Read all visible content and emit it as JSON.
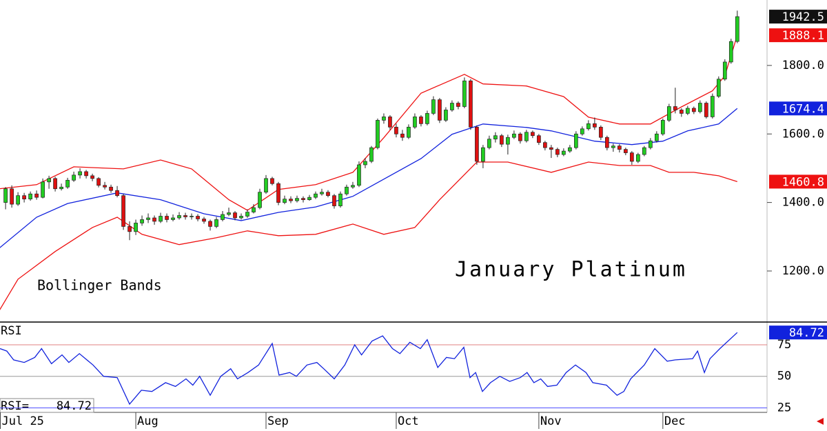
{
  "chart_data": [
    {
      "type": "candlestick",
      "title": "January Platinum",
      "subtitle": "Bollinger Bands",
      "up_color": "#22cc22",
      "down_color": "#dd1111",
      "ohlc": [
        [
          1400,
          1445,
          1380,
          1440
        ],
        [
          1440,
          1450,
          1385,
          1395
        ],
        [
          1395,
          1430,
          1390,
          1420
        ],
        [
          1420,
          1428,
          1400,
          1410
        ],
        [
          1410,
          1432,
          1405,
          1425
        ],
        [
          1425,
          1435,
          1408,
          1415
        ],
        [
          1415,
          1470,
          1412,
          1460
        ],
        [
          1460,
          1478,
          1440,
          1470
        ],
        [
          1470,
          1475,
          1432,
          1440
        ],
        [
          1440,
          1455,
          1435,
          1445
        ],
        [
          1445,
          1472,
          1440,
          1465
        ],
        [
          1465,
          1490,
          1460,
          1480
        ],
        [
          1480,
          1500,
          1470,
          1490
        ],
        [
          1490,
          1495,
          1470,
          1478
        ],
        [
          1478,
          1484,
          1462,
          1470
        ],
        [
          1470,
          1474,
          1444,
          1450
        ],
        [
          1450,
          1460,
          1438,
          1445
        ],
        [
          1445,
          1452,
          1428,
          1435
        ],
        [
          1435,
          1448,
          1415,
          1420
        ],
        [
          1420,
          1425,
          1320,
          1330
        ],
        [
          1330,
          1345,
          1290,
          1315
        ],
        [
          1315,
          1350,
          1305,
          1340
        ],
        [
          1340,
          1362,
          1332,
          1350
        ],
        [
          1350,
          1368,
          1340,
          1355
        ],
        [
          1355,
          1362,
          1335,
          1345
        ],
        [
          1345,
          1370,
          1340,
          1360
        ],
        [
          1360,
          1368,
          1342,
          1350
        ],
        [
          1350,
          1365,
          1345,
          1355
        ],
        [
          1355,
          1372,
          1350,
          1362
        ],
        [
          1362,
          1370,
          1350,
          1358
        ],
        [
          1358,
          1368,
          1350,
          1360
        ],
        [
          1360,
          1366,
          1345,
          1352
        ],
        [
          1352,
          1358,
          1338,
          1345
        ],
        [
          1345,
          1350,
          1318,
          1330
        ],
        [
          1330,
          1358,
          1325,
          1350
        ],
        [
          1350,
          1375,
          1345,
          1365
        ],
        [
          1365,
          1385,
          1360,
          1370
        ],
        [
          1370,
          1375,
          1348,
          1355
        ],
        [
          1355,
          1368,
          1350,
          1360
        ],
        [
          1360,
          1380,
          1355,
          1372
        ],
        [
          1372,
          1395,
          1368,
          1385
        ],
        [
          1385,
          1440,
          1380,
          1430
        ],
        [
          1430,
          1480,
          1425,
          1470
        ],
        [
          1470,
          1475,
          1450,
          1455
        ],
        [
          1455,
          1460,
          1392,
          1400
        ],
        [
          1400,
          1420,
          1395,
          1410
        ],
        [
          1410,
          1418,
          1398,
          1405
        ],
        [
          1405,
          1420,
          1400,
          1412
        ],
        [
          1412,
          1418,
          1400,
          1408
        ],
        [
          1408,
          1422,
          1405,
          1415
        ],
        [
          1415,
          1432,
          1410,
          1425
        ],
        [
          1425,
          1440,
          1420,
          1430
        ],
        [
          1430,
          1436,
          1415,
          1420
        ],
        [
          1420,
          1425,
          1382,
          1390
        ],
        [
          1390,
          1432,
          1385,
          1425
        ],
        [
          1425,
          1452,
          1420,
          1445
        ],
        [
          1445,
          1460,
          1440,
          1450
        ],
        [
          1450,
          1520,
          1445,
          1510
        ],
        [
          1510,
          1530,
          1500,
          1520
        ],
        [
          1520,
          1565,
          1515,
          1560
        ],
        [
          1560,
          1645,
          1555,
          1640
        ],
        [
          1640,
          1660,
          1630,
          1650
        ],
        [
          1650,
          1655,
          1612,
          1620
        ],
        [
          1620,
          1630,
          1590,
          1600
        ],
        [
          1600,
          1612,
          1580,
          1590
        ],
        [
          1590,
          1628,
          1585,
          1620
        ],
        [
          1620,
          1660,
          1615,
          1650
        ],
        [
          1650,
          1655,
          1622,
          1630
        ],
        [
          1630,
          1668,
          1625,
          1660
        ],
        [
          1660,
          1710,
          1655,
          1700
        ],
        [
          1700,
          1705,
          1632,
          1640
        ],
        [
          1640,
          1678,
          1635,
          1670
        ],
        [
          1670,
          1698,
          1665,
          1690
        ],
        [
          1690,
          1695,
          1672,
          1680
        ],
        [
          1680,
          1765,
          1675,
          1755
        ],
        [
          1755,
          1760,
          1612,
          1620
        ],
        [
          1620,
          1625,
          1510,
          1520
        ],
        [
          1520,
          1568,
          1500,
          1560
        ],
        [
          1560,
          1595,
          1555,
          1585
        ],
        [
          1585,
          1605,
          1575,
          1595
        ],
        [
          1595,
          1600,
          1562,
          1570
        ],
        [
          1570,
          1598,
          1540,
          1590
        ],
        [
          1590,
          1610,
          1585,
          1600
        ],
        [
          1600,
          1605,
          1572,
          1580
        ],
        [
          1580,
          1612,
          1575,
          1605
        ],
        [
          1605,
          1610,
          1588,
          1595
        ],
        [
          1595,
          1600,
          1568,
          1575
        ],
        [
          1575,
          1580,
          1552,
          1560
        ],
        [
          1560,
          1568,
          1530,
          1555
        ],
        [
          1555,
          1560,
          1532,
          1540
        ],
        [
          1540,
          1558,
          1535,
          1550
        ],
        [
          1550,
          1568,
          1545,
          1560
        ],
        [
          1560,
          1608,
          1555,
          1600
        ],
        [
          1600,
          1622,
          1595,
          1615
        ],
        [
          1615,
          1640,
          1610,
          1630
        ],
        [
          1630,
          1648,
          1612,
          1620
        ],
        [
          1620,
          1625,
          1582,
          1590
        ],
        [
          1590,
          1595,
          1552,
          1560
        ],
        [
          1560,
          1572,
          1548,
          1565
        ],
        [
          1565,
          1570,
          1546,
          1555
        ],
        [
          1555,
          1560,
          1538,
          1545
        ],
        [
          1545,
          1550,
          1510,
          1520
        ],
        [
          1520,
          1545,
          1515,
          1540
        ],
        [
          1540,
          1565,
          1535,
          1560
        ],
        [
          1560,
          1588,
          1555,
          1580
        ],
        [
          1580,
          1608,
          1575,
          1600
        ],
        [
          1600,
          1645,
          1595,
          1640
        ],
        [
          1640,
          1688,
          1635,
          1680
        ],
        [
          1680,
          1735,
          1660,
          1670
        ],
        [
          1670,
          1675,
          1650,
          1660
        ],
        [
          1660,
          1682,
          1655,
          1675
        ],
        [
          1675,
          1680,
          1658,
          1665
        ],
        [
          1665,
          1698,
          1660,
          1690
        ],
        [
          1690,
          1695,
          1645,
          1650
        ],
        [
          1650,
          1718,
          1645,
          1710
        ],
        [
          1710,
          1768,
          1705,
          1760
        ],
        [
          1760,
          1818,
          1755,
          1810
        ],
        [
          1810,
          1878,
          1805,
          1870
        ],
        [
          1870,
          1960,
          1865,
          1942.5
        ]
      ],
      "bands": {
        "upper": {
          "color": "#ee1111",
          "x": [
            -1,
            5,
            11,
            19,
            25,
            30,
            36,
            39,
            44,
            50,
            56,
            61,
            67,
            74,
            77,
            84,
            90,
            94,
            99,
            104,
            109,
            114,
            116,
            118
          ],
          "values": [
            1440,
            1452,
            1504,
            1498,
            1524,
            1498,
            1408,
            1377,
            1438,
            1452,
            1488,
            1589,
            1719,
            1774,
            1746,
            1740,
            1709,
            1649,
            1629,
            1629,
            1679,
            1726,
            1770,
            1888.1
          ]
        },
        "middle": {
          "color": "#1122dd",
          "x": [
            -1,
            5,
            10,
            18,
            25,
            32,
            38,
            44,
            50,
            56,
            61,
            67,
            72,
            77,
            84,
            88,
            95,
            101,
            106,
            110,
            115,
            118
          ],
          "values": [
            1267,
            1357,
            1397,
            1428,
            1408,
            1367,
            1347,
            1371,
            1387,
            1418,
            1468,
            1528,
            1599,
            1629,
            1619,
            1609,
            1579,
            1569,
            1579,
            1609,
            1629,
            1674.4
          ]
        },
        "lower": {
          "color": "#ee1111",
          "x": [
            -1,
            2,
            8,
            14,
            18,
            22,
            28,
            34,
            39,
            44,
            50,
            56,
            61,
            66,
            70,
            76,
            81,
            88,
            94,
            99,
            104,
            107,
            111,
            115,
            118
          ],
          "values": [
            1085,
            1176,
            1257,
            1327,
            1357,
            1307,
            1277,
            1297,
            1317,
            1303,
            1307,
            1337,
            1307,
            1327,
            1408,
            1518,
            1518,
            1488,
            1518,
            1508,
            1508,
            1488,
            1488,
            1478,
            1460.8
          ]
        }
      },
      "last_color": "#111111",
      "xlim": [
        -0.9,
        122.8
      ],
      "ylim": [
        1051,
        1991
      ],
      "yticks": [
        {
          "value": 1200,
          "label": "1200.0"
        },
        {
          "value": 1400,
          "label": "1400.0"
        },
        {
          "value": 1600,
          "label": "1600.0"
        },
        {
          "value": 1800,
          "label": "1800.0"
        }
      ],
      "xticks": [
        {
          "value": -0.9,
          "label": "Jul 25"
        },
        {
          "value": 21,
          "label": "Aug"
        },
        {
          "value": 42,
          "label": "Sep"
        },
        {
          "value": 63,
          "label": "Oct"
        },
        {
          "value": 86,
          "label": "Nov"
        },
        {
          "value": 106,
          "label": "Dec"
        }
      ]
    },
    {
      "type": "line",
      "title": "RSI",
      "readout": "RSI=",
      "color": "#1122dd",
      "x": [
        -0.9,
        0.2,
        1.3,
        3,
        4.7,
        5.8,
        7.4,
        9.1,
        10.2,
        11.9,
        14.1,
        15.8,
        18,
        20,
        21.9,
        23.6,
        25.8,
        27.4,
        29.1,
        30.2,
        31.3,
        33,
        34.7,
        36.3,
        37.4,
        39.1,
        40.8,
        43,
        44.1,
        45.8,
        46.9,
        48.6,
        50.2,
        51.3,
        53,
        54.7,
        56.3,
        57.4,
        59.1,
        60.8,
        62.4,
        63.6,
        65.2,
        66.9,
        68,
        69.7,
        71.1,
        72.4,
        73.9,
        74.9,
        75.8,
        76.9,
        78.2,
        79.7,
        81.3,
        83,
        84.1,
        85.2,
        86.3,
        87.4,
        88.9,
        90.4,
        91.9,
        93.6,
        94.7,
        96.9,
        98.6,
        99.7,
        100.8,
        103,
        104.7,
        106.7,
        108,
        110.8,
        111.6,
        112.7,
        113.6,
        115.2,
        118
      ],
      "values": [
        72,
        70,
        63,
        61,
        65,
        72,
        60,
        67,
        61,
        68,
        59,
        50,
        49,
        28,
        39,
        38,
        45,
        42,
        48,
        43,
        50,
        35,
        50,
        56,
        48,
        53,
        59,
        76,
        51,
        53,
        50,
        59,
        61,
        56,
        48,
        59,
        75,
        67,
        78,
        82,
        72,
        68,
        77,
        72,
        79,
        57,
        65,
        64,
        73,
        49,
        53,
        38,
        45,
        50,
        46,
        49,
        53,
        45,
        48,
        42,
        43,
        53,
        59,
        53,
        45,
        43,
        35,
        38,
        48,
        59,
        72,
        62,
        63,
        64,
        70,
        53,
        64,
        72,
        84.72
      ],
      "xlim": [
        -0.9,
        122.8
      ],
      "ylim": [
        22,
        93
      ],
      "yticks": [
        25,
        50,
        75
      ],
      "ytick_colors": [
        "#5050ff",
        "#999999",
        "#e08080"
      ]
    }
  ]
}
